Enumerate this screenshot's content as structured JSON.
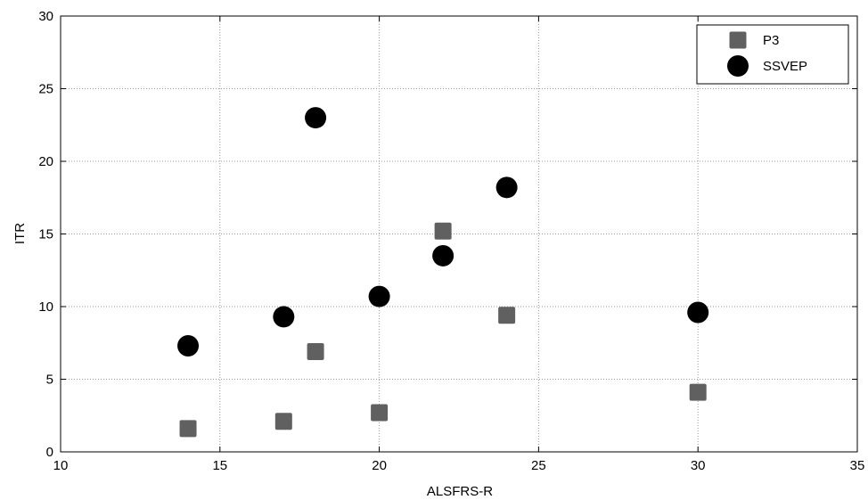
{
  "chart_data": {
    "type": "scatter",
    "title": "",
    "xlabel": "ALSFRS-R",
    "ylabel": "ITR",
    "xlim": [
      10,
      35
    ],
    "ylim": [
      0,
      30
    ],
    "xticks": [
      "10",
      "15",
      "20",
      "25",
      "30",
      "35"
    ],
    "yticks": [
      "0",
      "5",
      "10",
      "15",
      "20",
      "25",
      "30"
    ],
    "grid": true,
    "legend_position": "top-right",
    "series": [
      {
        "name": "P3",
        "marker": "square",
        "color": "#606060",
        "points": [
          {
            "x": 14,
            "y": 1.6
          },
          {
            "x": 17,
            "y": 2.1
          },
          {
            "x": 18,
            "y": 6.9
          },
          {
            "x": 20,
            "y": 2.7
          },
          {
            "x": 22,
            "y": 15.2
          },
          {
            "x": 24,
            "y": 9.4
          },
          {
            "x": 30,
            "y": 4.1
          }
        ]
      },
      {
        "name": "SSVEP",
        "marker": "circle",
        "color": "#000000",
        "points": [
          {
            "x": 14,
            "y": 7.3
          },
          {
            "x": 17,
            "y": 9.3
          },
          {
            "x": 18,
            "y": 23.0
          },
          {
            "x": 20,
            "y": 10.7
          },
          {
            "x": 22,
            "y": 13.5
          },
          {
            "x": 24,
            "y": 18.2
          },
          {
            "x": 30,
            "y": 9.6
          }
        ]
      }
    ]
  }
}
